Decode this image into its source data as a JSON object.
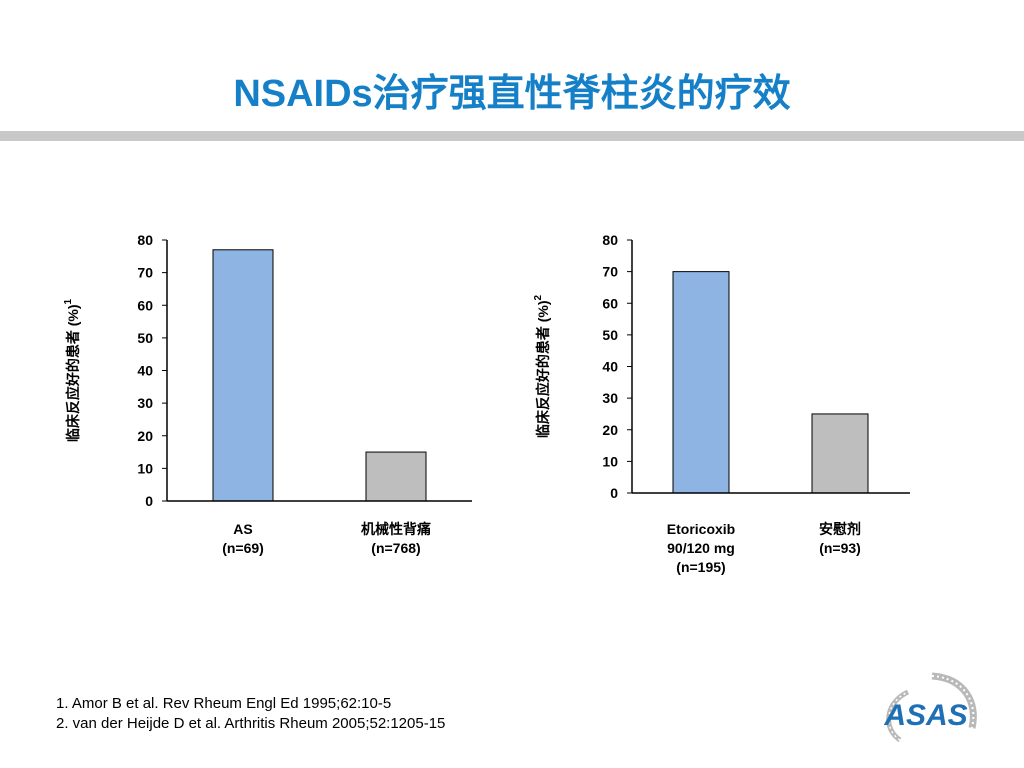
{
  "slide": {
    "title": "NSAIDs治疗强直性脊柱炎的疗效",
    "references": [
      "1. Amor B et al. Rev Rheum Engl Ed 1995;62:10-5",
      "2. van der Heijde D et al. Arthritis Rheum 2005;52:1205-15"
    ],
    "logo_text": "ASAS"
  },
  "colors": {
    "title": "#1580c8",
    "bar_blue": "#8eb4e3",
    "bar_gray": "#bebebe",
    "rule": "#c8c8c8",
    "logo": "#1f6fb5"
  },
  "chart_data": [
    {
      "type": "bar",
      "ylabel": "临床反应好的患者 (%)",
      "ylabel_sup": "1",
      "ylim": [
        0,
        80
      ],
      "yticks": [
        0,
        10,
        20,
        30,
        40,
        50,
        60,
        70,
        80
      ],
      "categories": [
        [
          "AS",
          "(n=69)"
        ],
        [
          "机械性背痛",
          "(n=768)"
        ]
      ],
      "values": [
        77,
        15
      ],
      "bar_colors": [
        "#8eb4e3",
        "#bebebe"
      ],
      "grid": false
    },
    {
      "type": "bar",
      "ylabel": "临床反应好的患者 (%)",
      "ylabel_sup": "2",
      "ylim": [
        0,
        80
      ],
      "yticks": [
        0,
        10,
        20,
        30,
        40,
        50,
        60,
        70,
        80
      ],
      "categories": [
        [
          "Etoricoxib",
          "90/120 mg",
          "(n=195)"
        ],
        [
          "安慰剂",
          "(n=93)"
        ]
      ],
      "values": [
        70,
        25
      ],
      "bar_colors": [
        "#8eb4e3",
        "#bebebe"
      ],
      "grid": false
    }
  ]
}
